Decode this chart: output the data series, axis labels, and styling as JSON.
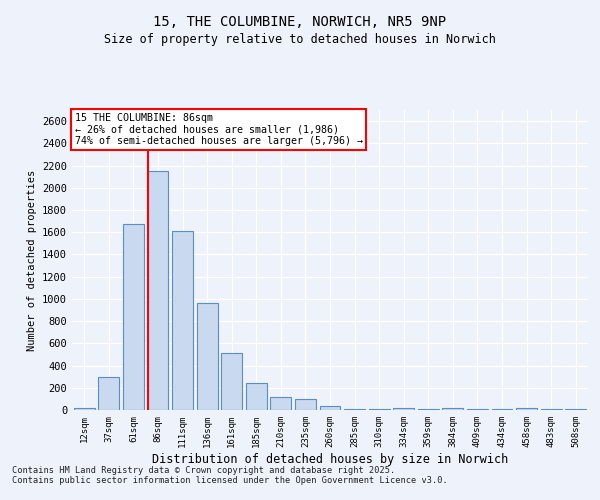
{
  "title": "15, THE COLUMBINE, NORWICH, NR5 9NP",
  "subtitle": "Size of property relative to detached houses in Norwich",
  "xlabel": "Distribution of detached houses by size in Norwich",
  "ylabel": "Number of detached properties",
  "categories": [
    "12sqm",
    "37sqm",
    "61sqm",
    "86sqm",
    "111sqm",
    "136sqm",
    "161sqm",
    "185sqm",
    "210sqm",
    "235sqm",
    "260sqm",
    "285sqm",
    "310sqm",
    "334sqm",
    "359sqm",
    "384sqm",
    "409sqm",
    "434sqm",
    "458sqm",
    "483sqm",
    "508sqm"
  ],
  "values": [
    20,
    295,
    1670,
    2150,
    1610,
    960,
    510,
    245,
    120,
    100,
    40,
    5,
    5,
    20,
    5,
    20,
    5,
    5,
    15,
    5,
    5
  ],
  "bar_color": "#c9d9f0",
  "bar_edge_color": "#5a8fc0",
  "bar_edge_width": 0.8,
  "red_line_index": 3,
  "annotation_line1": "15 THE COLUMBINE: 86sqm",
  "annotation_line2": "← 26% of detached houses are smaller (1,986)",
  "annotation_line3": "74% of semi-detached houses are larger (5,796) →",
  "ylim": [
    0,
    2700
  ],
  "yticks": [
    0,
    200,
    400,
    600,
    800,
    1000,
    1200,
    1400,
    1600,
    1800,
    2000,
    2200,
    2400,
    2600
  ],
  "background_color": "#eef2fa",
  "grid_color": "#ffffff",
  "footer_line1": "Contains HM Land Registry data © Crown copyright and database right 2025.",
  "footer_line2": "Contains public sector information licensed under the Open Government Licence v3.0."
}
